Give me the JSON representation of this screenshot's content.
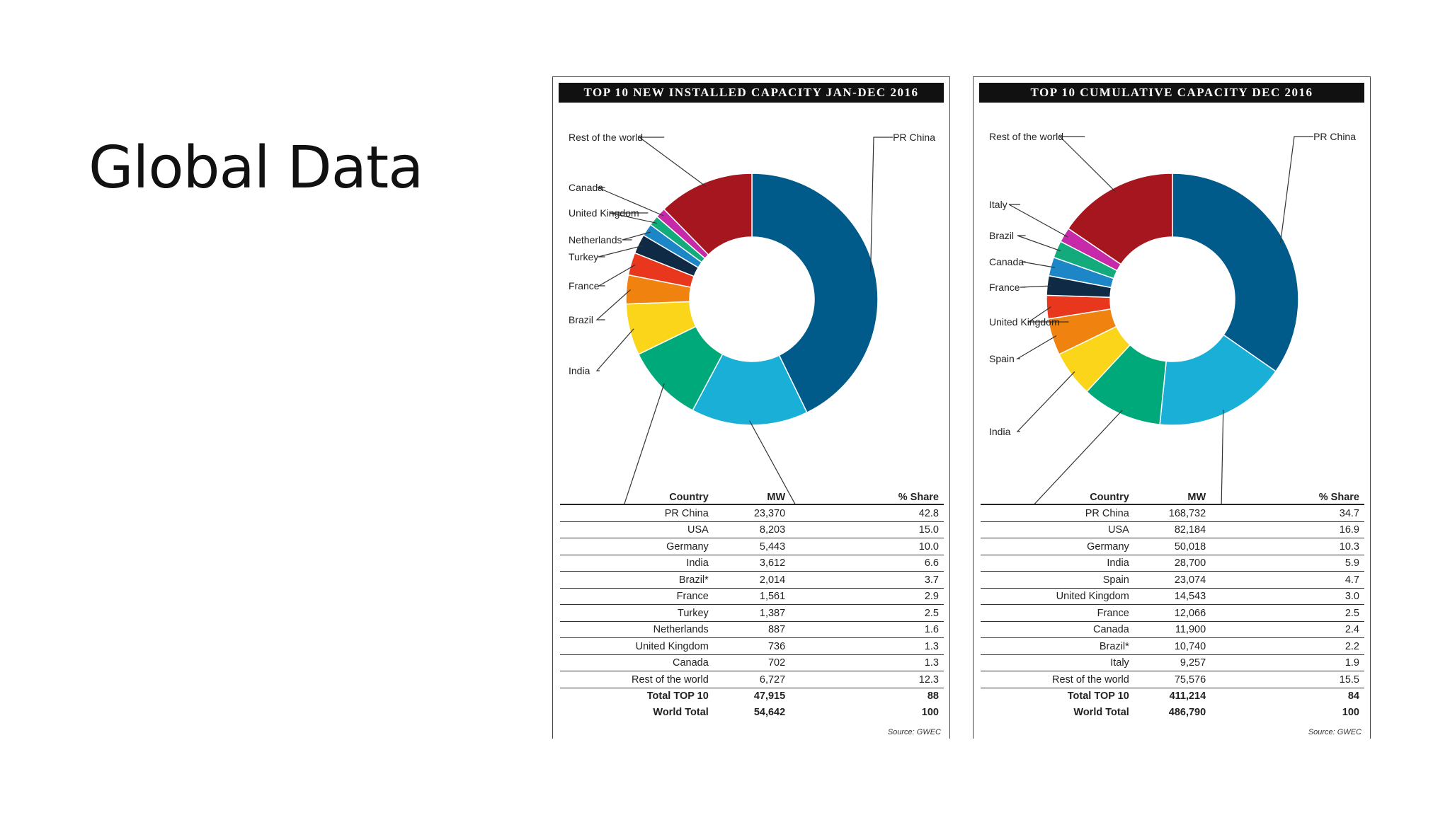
{
  "slide": {
    "title": "Global Data"
  },
  "table_headers": {
    "country": "Country",
    "mw": "MW",
    "share": "% Share"
  },
  "chart_data": [
    {
      "type": "pie",
      "title": "TOP 10 NEW INSTALLED CAPACITY JAN-DEC 2016",
      "source": "Source: GWEC",
      "rows": [
        {
          "country": "PR China",
          "label": "PR China",
          "mw": "23,370",
          "share": "42.8",
          "value": 42.8,
          "color": "#005b8a"
        },
        {
          "country": "USA",
          "label": "USA",
          "mw": "8,203",
          "share": "15.0",
          "value": 15.0,
          "color": "#1aafd6"
        },
        {
          "country": "Germany",
          "label": "Germany",
          "mw": "5,443",
          "share": "10.0",
          "value": 10.0,
          "color": "#00a97a"
        },
        {
          "country": "India",
          "label": "India",
          "mw": "3,612",
          "share": "6.6",
          "value": 6.6,
          "color": "#fad51a"
        },
        {
          "country": "Brazil*",
          "label": "Brazil",
          "mw": "2,014",
          "share": "3.7",
          "value": 3.7,
          "color": "#f0820f"
        },
        {
          "country": "France",
          "label": "France",
          "mw": "1,561",
          "share": "2.9",
          "value": 2.9,
          "color": "#e8371c"
        },
        {
          "country": "Turkey",
          "label": "Turkey",
          "mw": "1,387",
          "share": "2.5",
          "value": 2.5,
          "color": "#0e2a45"
        },
        {
          "country": "Netherlands",
          "label": "Netherlands",
          "mw": "887",
          "share": "1.6",
          "value": 1.6,
          "color": "#1c86c6"
        },
        {
          "country": "United Kingdom",
          "label": "United Kingdom",
          "mw": "736",
          "share": "1.3",
          "value": 1.3,
          "color": "#14ab7c"
        },
        {
          "country": "Canada",
          "label": "Canada",
          "mw": "702",
          "share": "1.3",
          "value": 1.3,
          "color": "#c62aa8"
        },
        {
          "country": "Rest of the world",
          "label": "Rest of the world",
          "mw": "6,727",
          "share": "12.3",
          "value": 12.3,
          "color": "#a6161e"
        }
      ],
      "totals": [
        {
          "country": "Total TOP 10",
          "mw": "47,915",
          "share": "88"
        },
        {
          "country": "World Total",
          "mw": "54,642",
          "share": "100"
        }
      ]
    },
    {
      "type": "pie",
      "title": "TOP 10 CUMULATIVE CAPACITY DEC 2016",
      "source": "Source: GWEC",
      "rows": [
        {
          "country": "PR China",
          "label": "PR China",
          "mw": "168,732",
          "share": "34.7",
          "value": 34.7,
          "color": "#005b8a"
        },
        {
          "country": "USA",
          "label": "USA",
          "mw": "82,184",
          "share": "16.9",
          "value": 16.9,
          "color": "#1aafd6"
        },
        {
          "country": "Germany",
          "label": "Germany",
          "mw": "50,018",
          "share": "10.3",
          "value": 10.3,
          "color": "#00a97a"
        },
        {
          "country": "India",
          "label": "India",
          "mw": "28,700",
          "share": "5.9",
          "value": 5.9,
          "color": "#fad51a"
        },
        {
          "country": "Spain",
          "label": "Spain",
          "mw": "23,074",
          "share": "4.7",
          "value": 4.7,
          "color": "#f0820f"
        },
        {
          "country": "United Kingdom",
          "label": "United Kingdom",
          "mw": "14,543",
          "share": "3.0",
          "value": 3.0,
          "color": "#e8371c"
        },
        {
          "country": "France",
          "label": "France",
          "mw": "12,066",
          "share": "2.5",
          "value": 2.5,
          "color": "#0e2a45"
        },
        {
          "country": "Canada",
          "label": "Canada",
          "mw": "11,900",
          "share": "2.4",
          "value": 2.4,
          "color": "#1c86c6"
        },
        {
          "country": "Brazil*",
          "label": "Brazil",
          "mw": "10,740",
          "share": "2.2",
          "value": 2.2,
          "color": "#14ab7c"
        },
        {
          "country": "Italy",
          "label": "Italy",
          "mw": "9,257",
          "share": "1.9",
          "value": 1.9,
          "color": "#c62aa8"
        },
        {
          "country": "Rest of the world",
          "label": "Rest of the world",
          "mw": "75,576",
          "share": "15.5",
          "value": 15.5,
          "color": "#a6161e"
        }
      ],
      "totals": [
        {
          "country": "Total TOP 10",
          "mw": "411,214",
          "share": "84"
        },
        {
          "country": "World Total",
          "mw": "486,790",
          "share": "100"
        }
      ]
    }
  ]
}
